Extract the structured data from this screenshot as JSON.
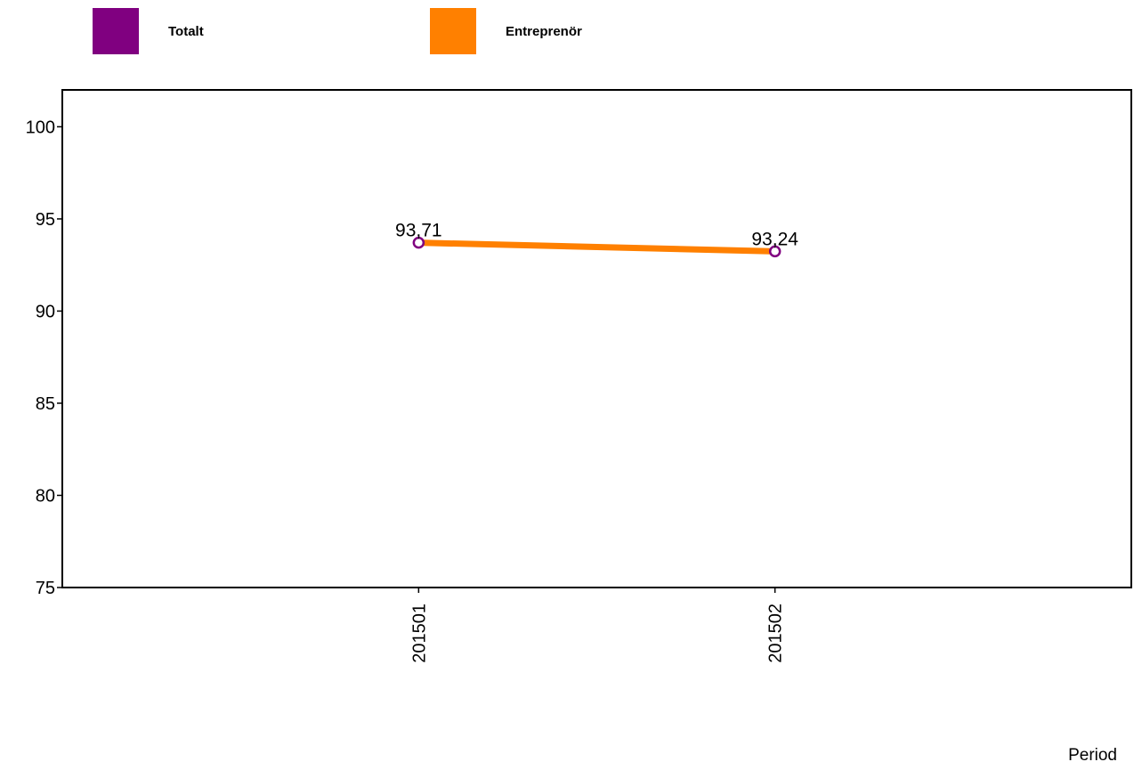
{
  "legend": {
    "items": [
      {
        "label": "Totalt",
        "color": "#800080"
      },
      {
        "label": "Entreprenör",
        "color": "#ff8000"
      }
    ]
  },
  "chart_data": {
    "type": "line",
    "categories": [
      "201501",
      "201502"
    ],
    "series": [
      {
        "name": "Totalt",
        "values": [
          93.71,
          93.24
        ],
        "color": "#800080",
        "marker": "hollow-circle"
      },
      {
        "name": "Entreprenör",
        "values": [
          93.71,
          93.24
        ],
        "color": "#ff8000"
      }
    ],
    "data_labels": [
      "93,71",
      "93,24"
    ],
    "xlabel": "Period",
    "ylabel": "",
    "ylim": [
      75,
      102
    ],
    "yticks": [
      75,
      80,
      85,
      90,
      95,
      100
    ],
    "grid": false
  }
}
